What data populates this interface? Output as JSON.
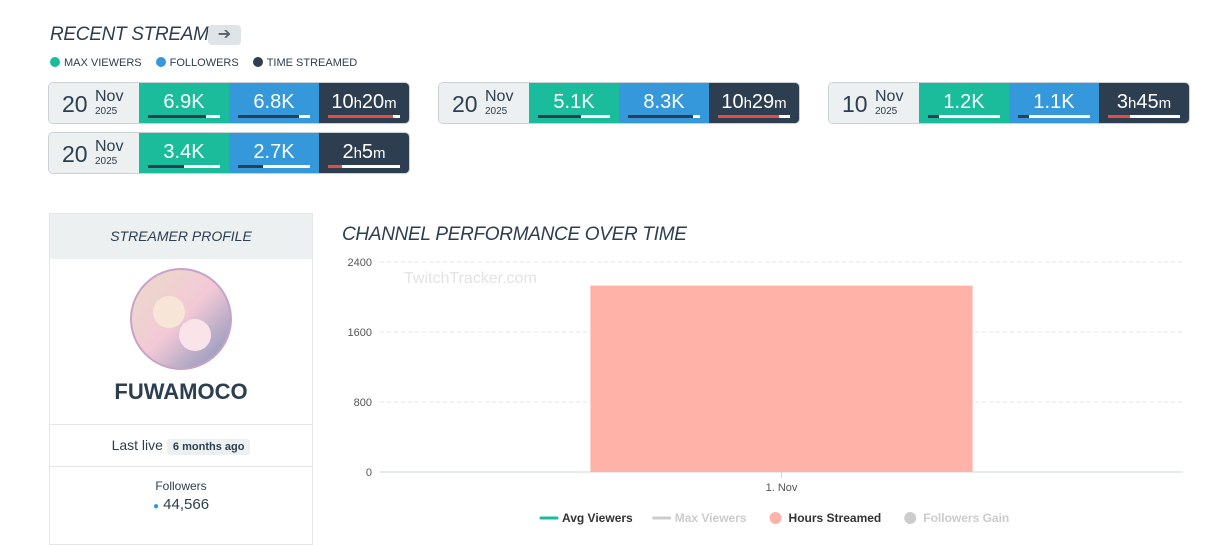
{
  "recent_streams": {
    "title": "RECENT STREAMS",
    "arrow": "➔",
    "legend": [
      "MAX VIEWERS",
      "FOLLOWERS",
      "TIME STREAMED"
    ],
    "hour_unit": "h",
    "minute_unit": "m",
    "streams": [
      {
        "day": "20",
        "month": "Nov",
        "year": "2025",
        "max_viewers": "6.9K",
        "followers": "6.8K",
        "hours": "10",
        "minutes": "20"
      },
      {
        "day": "20",
        "month": "Nov",
        "year": "2025",
        "max_viewers": "5.1K",
        "followers": "8.3K",
        "hours": "10",
        "minutes": "29"
      },
      {
        "day": "10",
        "month": "Nov",
        "year": "2025",
        "max_viewers": "1.2K",
        "followers": "1.1K",
        "hours": "3",
        "minutes": "45"
      },
      {
        "day": "20",
        "month": "Nov",
        "year": "2025",
        "max_viewers": "3.4K",
        "followers": "2.7K",
        "hours": "2",
        "minutes": "5"
      }
    ]
  },
  "profile": {
    "header": "STREAMER PROFILE",
    "name": "FUWAMOCO",
    "last_live_label": "Last live",
    "last_live": "6 months ago",
    "followers_label": "Followers",
    "followers": "44,566"
  },
  "chart_data": {
    "type": "bar",
    "title": "CHANNEL PERFORMANCE OVER TIME",
    "watermark": "TwitchTracker.com",
    "categories": [
      "1. Nov"
    ],
    "series": [
      {
        "name": "Avg Viewers",
        "color": "#1abc9c",
        "values": [
          null
        ],
        "legend_marker": "line",
        "hidden": false
      },
      {
        "name": "Max Viewers",
        "color": "#cccccc",
        "values": [
          null
        ],
        "legend_marker": "line",
        "hidden": true
      },
      {
        "name": "Hours Streamed",
        "color": "#ffb3a8",
        "values": [
          2130
        ],
        "legend_marker": "circle",
        "hidden": false
      },
      {
        "name": "Followers Gain",
        "color": "#cccccc",
        "values": [
          null
        ],
        "legend_marker": "circle",
        "hidden": true
      }
    ],
    "ylim": [
      0,
      2400
    ],
    "yticks": [
      0,
      800,
      1600,
      2400
    ],
    "grid": true
  }
}
